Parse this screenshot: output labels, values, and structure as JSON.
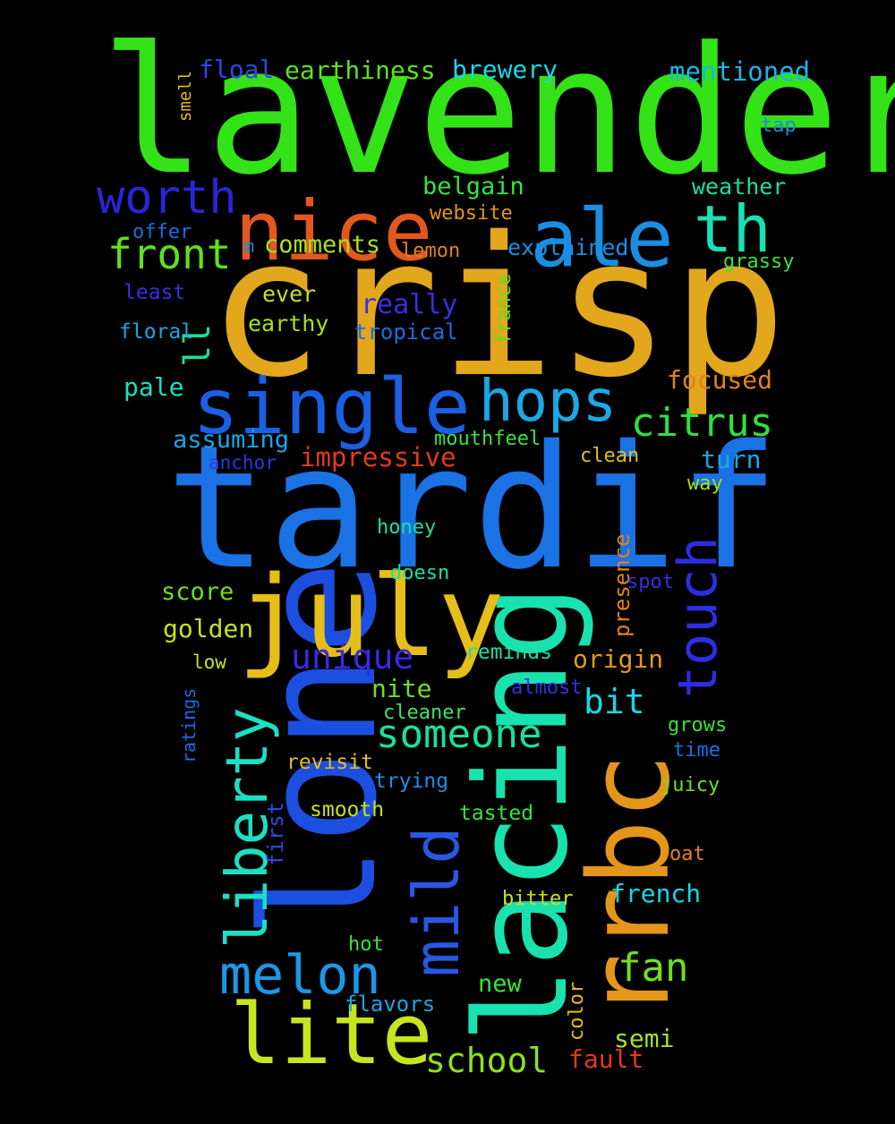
{
  "words": [
    {
      "text": "lavender",
      "color": "#34e218"
    },
    {
      "text": "crisp",
      "color": "#e2a71c"
    },
    {
      "text": "tardif",
      "color": "#1a72e4"
    },
    {
      "text": "lone",
      "color": "#1c4fe0"
    },
    {
      "text": "lacing",
      "color": "#19e2ae"
    },
    {
      "text": "rrbc",
      "color": "#e3961a"
    },
    {
      "text": "july",
      "color": "#e5be1a"
    },
    {
      "text": "single",
      "color": "#1b5fe2"
    },
    {
      "text": "nice",
      "color": "#e3581e"
    },
    {
      "text": "ale",
      "color": "#1a8ee2"
    },
    {
      "text": "hops",
      "color": "#1aa8e8"
    },
    {
      "text": "lite",
      "color": "#c5e61e"
    },
    {
      "text": "th",
      "color": "#19e1b5"
    },
    {
      "text": "worth",
      "color": "#2a26d8"
    },
    {
      "text": "liberty",
      "color": "#1ae0c4"
    },
    {
      "text": "touch",
      "color": "#2c2ee2"
    },
    {
      "text": "mild",
      "color": "#2a56e4"
    },
    {
      "text": "melon",
      "color": "#1a98e6"
    },
    {
      "text": "front",
      "color": "#5ee21a"
    },
    {
      "text": "someone",
      "color": "#1ae0a2"
    },
    {
      "text": "citrus",
      "color": "#2ee23a"
    },
    {
      "text": "ll",
      "color": "#1ae09a"
    },
    {
      "text": "fan",
      "color": "#6ee21c"
    },
    {
      "text": "unique",
      "color": "#3a28e2"
    },
    {
      "text": "bit",
      "color": "#1ad6e6"
    },
    {
      "text": "school",
      "color": "#8ee21a"
    },
    {
      "text": "earthiness",
      "color": "#5ee21a"
    },
    {
      "text": "mentioned",
      "color": "#1ab6e6"
    },
    {
      "text": "floal",
      "color": "#2a48e4"
    },
    {
      "text": "brewery",
      "color": "#1ad6e6"
    },
    {
      "text": "really",
      "color": "#3a2ee2"
    },
    {
      "text": "impressive",
      "color": "#e33a1e"
    },
    {
      "text": "comments",
      "color": "#a6e21a"
    },
    {
      "text": "belgain",
      "color": "#3ae23a"
    },
    {
      "text": "focused",
      "color": "#e3821a"
    },
    {
      "text": "origin",
      "color": "#e39a1a"
    },
    {
      "text": "assuming",
      "color": "#1aa6e6"
    },
    {
      "text": "golden",
      "color": "#c5e21a"
    },
    {
      "text": "score",
      "color": "#6ee21a"
    },
    {
      "text": "nite",
      "color": "#6ee21a"
    },
    {
      "text": "pale",
      "color": "#1ae0c4"
    },
    {
      "text": "explained",
      "color": "#1a8ee6"
    },
    {
      "text": "french",
      "color": "#1ad6e6"
    },
    {
      "text": "semi",
      "color": "#a6e21a"
    },
    {
      "text": "turn",
      "color": "#1aa6e6"
    },
    {
      "text": "weather",
      "color": "#1ae0a2"
    },
    {
      "text": "ever",
      "color": "#c5e21a"
    },
    {
      "text": "earthy",
      "color": "#a6e21a"
    },
    {
      "text": "mouthfeel",
      "color": "#3ae23a"
    },
    {
      "text": "reminds",
      "color": "#1ae0a2"
    },
    {
      "text": "tropical",
      "color": "#1a6ee4"
    },
    {
      "text": "grassy",
      "color": "#3ae23a"
    },
    {
      "text": "website",
      "color": "#e3961a"
    },
    {
      "text": "lemon",
      "color": "#e3821a"
    },
    {
      "text": "new",
      "color": "#3ae23a"
    },
    {
      "text": "flavors",
      "color": "#1aa6e6"
    },
    {
      "text": "fault",
      "color": "#e33a1e"
    },
    {
      "text": "presence",
      "color": "#e3821a"
    },
    {
      "text": "france",
      "color": "#5ee21a"
    },
    {
      "text": "offer",
      "color": "#1a6ee4"
    },
    {
      "text": "least",
      "color": "#3a2ee2"
    },
    {
      "text": "floral",
      "color": "#1aa6e6"
    },
    {
      "text": "anchor",
      "color": "#2a3ae2"
    },
    {
      "text": "clean",
      "color": "#e5be1a"
    },
    {
      "text": "honey",
      "color": "#1ae0a2"
    },
    {
      "text": "doesn",
      "color": "#1ae0a2"
    },
    {
      "text": "spot",
      "color": "#3a2ee2"
    },
    {
      "text": "way",
      "color": "#a6e21a"
    },
    {
      "text": "almost",
      "color": "#3a2ee2"
    },
    {
      "text": "cleaner",
      "color": "#3ae26e"
    },
    {
      "text": "revisit",
      "color": "#e5be1a"
    },
    {
      "text": "trying",
      "color": "#1a8ee6"
    },
    {
      "text": "smooth",
      "color": "#c5e21a"
    },
    {
      "text": "tasted",
      "color": "#3ae23a"
    },
    {
      "text": "grows",
      "color": "#3ae23a"
    },
    {
      "text": "time",
      "color": "#1a6ee4"
    },
    {
      "text": "juicy",
      "color": "#6ee21a"
    },
    {
      "text": "oat",
      "color": "#e3821a"
    },
    {
      "text": "bitter",
      "color": "#c5e21a"
    },
    {
      "text": "hot",
      "color": "#3ae23a"
    },
    {
      "text": "first",
      "color": "#2a48e4"
    },
    {
      "text": "color",
      "color": "#e5be1a"
    },
    {
      "text": "low",
      "color": "#c5e21a"
    },
    {
      "text": "ratings",
      "color": "#1a6ee4"
    },
    {
      "text": "smell",
      "color": "#e5be1a"
    },
    {
      "text": "tap",
      "color": "#1a8ee6"
    },
    {
      "text": "m",
      "color": "#1a8ee6"
    }
  ]
}
